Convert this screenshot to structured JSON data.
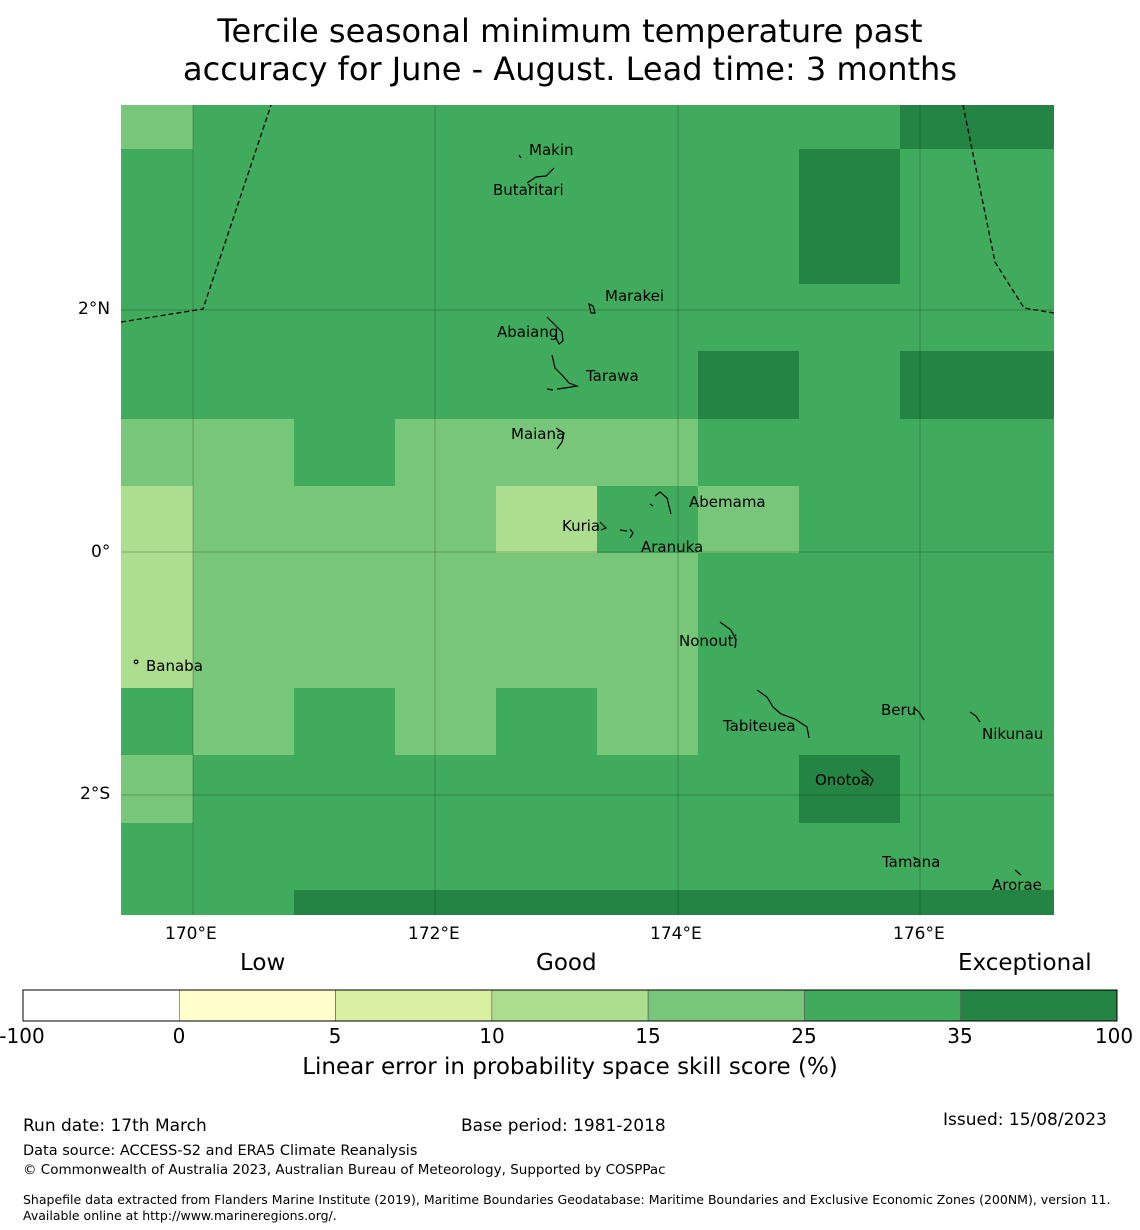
{
  "title_line1": "Tercile seasonal minimum temperature past",
  "title_line2": "accuracy for June - August. Lead time: 3 months",
  "map": {
    "lon_ticks": [
      "170°E",
      "172°E",
      "174°E",
      "176°E"
    ],
    "lat_ticks": [
      "2°N",
      "0°",
      "2°S"
    ],
    "skill_grid": [
      [
        4,
        5,
        5,
        5,
        5,
        5,
        5,
        5,
        6
      ],
      [
        5,
        5,
        5,
        5,
        5,
        5,
        5,
        6,
        5
      ],
      [
        5,
        5,
        5,
        5,
        5,
        5,
        5,
        6,
        5
      ],
      [
        5,
        5,
        5,
        5,
        5,
        5,
        5,
        5,
        5
      ],
      [
        5,
        5,
        5,
        5,
        5,
        5,
        5,
        5,
        5
      ],
      [
        5,
        5,
        5,
        5,
        5,
        5,
        5,
        5,
        5
      ],
      [
        5,
        5,
        5,
        5,
        5,
        5,
        6,
        5,
        6
      ],
      [
        4,
        4,
        5,
        4,
        4,
        4,
        5,
        5,
        5
      ],
      [
        3,
        4,
        4,
        4,
        3,
        5,
        4,
        5,
        5
      ],
      [
        3,
        4,
        4,
        4,
        4,
        4,
        5,
        5,
        5
      ],
      [
        3,
        4,
        4,
        4,
        4,
        4,
        5,
        5,
        5
      ],
      [
        5,
        4,
        5,
        4,
        5,
        4,
        5,
        5,
        5
      ],
      [
        4,
        5,
        5,
        5,
        5,
        5,
        5,
        6,
        5
      ],
      [
        5,
        5,
        5,
        5,
        5,
        5,
        5,
        5,
        5
      ],
      [
        5,
        5,
        6,
        6,
        6,
        6,
        6,
        6,
        6
      ]
    ],
    "islands": [
      {
        "name": "Makin"
      },
      {
        "name": "Butaritari"
      },
      {
        "name": "Marakei"
      },
      {
        "name": "Abaiang"
      },
      {
        "name": "Tarawa"
      },
      {
        "name": "Maiana"
      },
      {
        "name": "Abemama"
      },
      {
        "name": "Kuria"
      },
      {
        "name": "Aranuka"
      },
      {
        "name": "Nonouti"
      },
      {
        "name": "Banaba"
      },
      {
        "name": "Tabiteuea"
      },
      {
        "name": "Beru"
      },
      {
        "name": "Nikunau"
      },
      {
        "name": "Onotoa"
      },
      {
        "name": "Tamana"
      },
      {
        "name": "Arorae"
      }
    ]
  },
  "colorbar": {
    "categories": [
      "Low",
      "Good",
      "Exceptional"
    ],
    "ticks": [
      "-100",
      "0",
      "5",
      "10",
      "15",
      "25",
      "35",
      "100"
    ],
    "colors": [
      "#ffffff",
      "#ffffcc",
      "#d9f0a3",
      "#addd8e",
      "#78c679",
      "#41ab5d",
      "#238443"
    ],
    "label": "Linear error in probability space skill score (%)"
  },
  "footer": {
    "run_date": "Run date: 17th March",
    "base_period": "Base period: 1981-2018",
    "issued": "Issued: 15/08/2023",
    "data_source": "Data source: ACCESS-S2 and ERA5 Climate Reanalysis",
    "copyright": "© Commonwealth of Australia 2023, Australian Bureau of Meteorology, Supported by COSPPac",
    "shapefile": "Shapefile data extracted from Flanders Marine Institute (2019), Maritime Boundaries Geodatabase: Maritime Boundaries and Exclusive Economic Zones (200NM), version 11. Available online at http://www.marineregions.org/."
  }
}
